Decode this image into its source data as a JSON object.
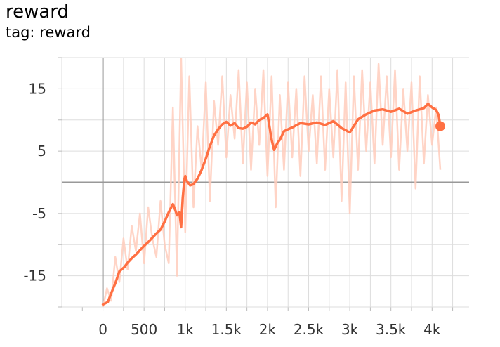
{
  "header": {
    "title": "reward",
    "subtitle": "tag: reward"
  },
  "chart_data": {
    "type": "line",
    "title": "reward",
    "subtitle": "tag: reward",
    "xlabel": "",
    "ylabel": "",
    "xlim": [
      -500,
      4450
    ],
    "ylim": [
      -20,
      20
    ],
    "x_ticks": [
      0,
      500,
      1000,
      1500,
      2000,
      2500,
      3000,
      3500,
      4000
    ],
    "x_tick_labels": [
      "0",
      "500",
      "1k",
      "1.5k",
      "2k",
      "2.5k",
      "3k",
      "3.5k",
      "4k"
    ],
    "y_ticks": [
      15,
      5,
      -5,
      -15
    ],
    "y_tick_labels": [
      "15",
      "5",
      "-5",
      "-15"
    ],
    "grid": true,
    "colors": {
      "smoothed": "#ff7043",
      "raw": "#ffccbc",
      "zero_axis": "#999999",
      "grid": "#dddddd"
    },
    "series": [
      {
        "role": "smoothed",
        "x": [
          0,
          60,
          100,
          150,
          200,
          260,
          300,
          350,
          400,
          450,
          500,
          550,
          600,
          650,
          700,
          750,
          800,
          850,
          880,
          900,
          930,
          950,
          970,
          990,
          1000,
          1020,
          1060,
          1100,
          1150,
          1200,
          1250,
          1300,
          1350,
          1400,
          1450,
          1500,
          1550,
          1600,
          1650,
          1700,
          1750,
          1800,
          1850,
          1900,
          1950,
          2000,
          2050,
          2080,
          2120,
          2150,
          2200,
          2300,
          2400,
          2500,
          2600,
          2700,
          2800,
          2900,
          3000,
          3100,
          3200,
          3300,
          3400,
          3500,
          3600,
          3700,
          3800,
          3900,
          3950,
          4000,
          4050,
          4080,
          4100
        ],
        "values": [
          -19.6,
          -19.2,
          -17.8,
          -16.2,
          -14.3,
          -13.6,
          -12.9,
          -12.2,
          -11.6,
          -10.9,
          -10.2,
          -9.6,
          -8.9,
          -8.2,
          -7.6,
          -6.3,
          -4.8,
          -3.5,
          -4.5,
          -5.3,
          -4.8,
          -7.2,
          -2.5,
          0.5,
          1.0,
          0.2,
          -0.5,
          -0.3,
          0.6,
          2.0,
          3.8,
          5.8,
          7.5,
          8.5,
          9.3,
          9.7,
          9.1,
          9.5,
          8.7,
          8.6,
          8.9,
          9.6,
          9.3,
          10.0,
          10.3,
          10.9,
          6.8,
          5.2,
          6.3,
          6.8,
          8.2,
          8.8,
          9.5,
          9.3,
          9.6,
          9.2,
          9.8,
          8.7,
          8.0,
          10.1,
          10.9,
          11.5,
          11.7,
          11.3,
          11.8,
          11.0,
          11.5,
          11.9,
          12.6,
          12.0,
          11.6,
          10.8,
          9.0
        ]
      },
      {
        "role": "raw",
        "x": [
          0,
          50,
          100,
          150,
          200,
          250,
          300,
          350,
          400,
          450,
          500,
          550,
          600,
          650,
          700,
          750,
          800,
          850,
          900,
          950,
          1000,
          1050,
          1100,
          1150,
          1200,
          1250,
          1300,
          1350,
          1400,
          1450,
          1500,
          1550,
          1600,
          1650,
          1700,
          1750,
          1800,
          1850,
          1900,
          1950,
          2000,
          2050,
          2100,
          2150,
          2200,
          2250,
          2300,
          2350,
          2400,
          2450,
          2500,
          2550,
          2600,
          2650,
          2700,
          2750,
          2800,
          2850,
          2900,
          2950,
          3000,
          3050,
          3100,
          3150,
          3200,
          3250,
          3300,
          3350,
          3400,
          3450,
          3500,
          3550,
          3600,
          3650,
          3700,
          3750,
          3800,
          3850,
          3900,
          3950,
          4000,
          4050,
          4100
        ],
        "values": [
          -20,
          -17,
          -19,
          -12,
          -16,
          -9,
          -14,
          -7,
          -11,
          -5,
          -13,
          -4,
          -9,
          -12,
          -3,
          -10,
          -13,
          12,
          -15,
          20,
          -8,
          17,
          -4,
          9,
          2,
          16,
          -3,
          13,
          6,
          17,
          4,
          14,
          7,
          18,
          3,
          16,
          2,
          15,
          6,
          18,
          1,
          17,
          -4,
          14,
          2,
          16,
          4,
          15,
          1,
          17,
          5,
          14,
          3,
          17,
          2,
          15,
          4,
          18,
          -3,
          16,
          -5,
          17,
          2,
          18,
          5,
          16,
          3,
          19,
          6,
          17,
          4,
          18,
          2,
          15,
          5,
          16,
          -1,
          17,
          3,
          14,
          6,
          12,
          2
        ]
      }
    ],
    "last_point": {
      "x": 4100,
      "y": 9.0
    }
  }
}
